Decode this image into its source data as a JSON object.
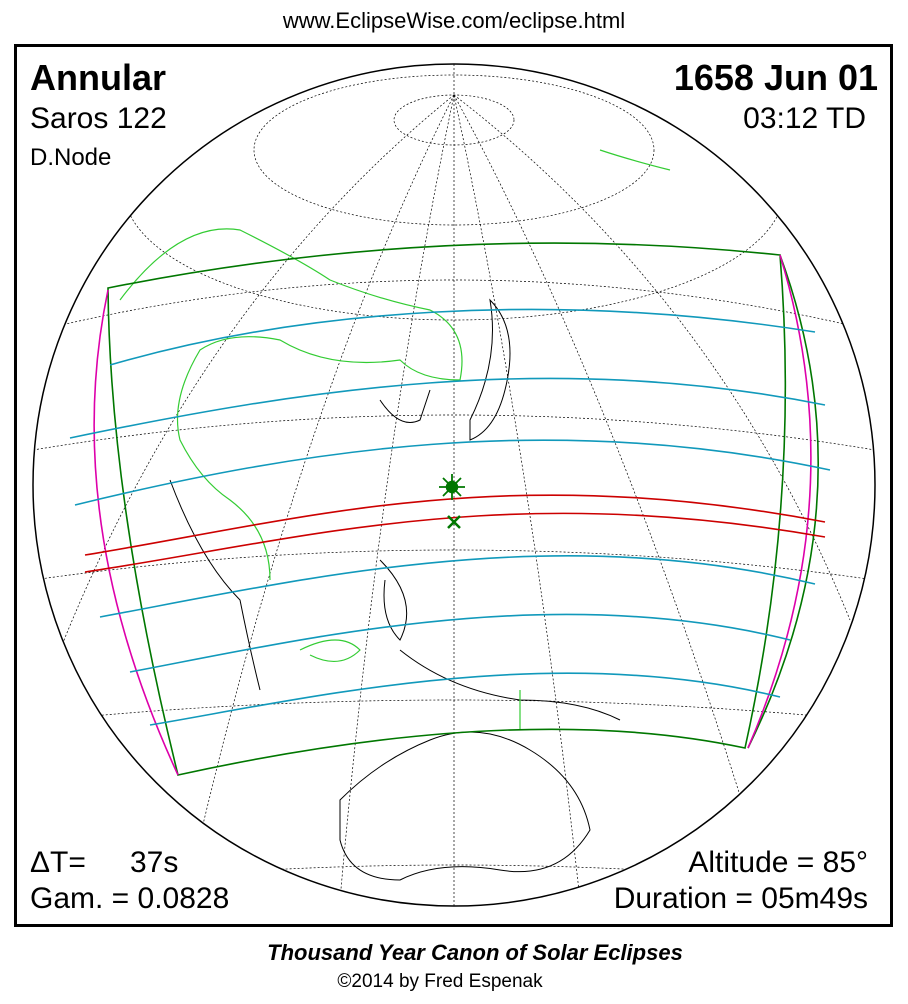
{
  "header": {
    "url": "www.EclipseWise.com/eclipse.html"
  },
  "panel": {
    "top_left": {
      "type": "Annular",
      "saros": "Saros 122",
      "node": "D.Node"
    },
    "top_right": {
      "date": "1658 Jun 01",
      "time": "03:12 TD"
    },
    "bottom_left": {
      "delta_t_label": "ΔT=",
      "delta_t_value": "37s",
      "gamma": "Gam. = 0.0828"
    },
    "bottom_right": {
      "altitude": "Altitude = 85°",
      "duration": "Duration = 05m49s"
    }
  },
  "footer": {
    "title": "Thousand Year Canon of Solar Eclipses",
    "credit": "©2014 by Fred Espenak"
  }
}
